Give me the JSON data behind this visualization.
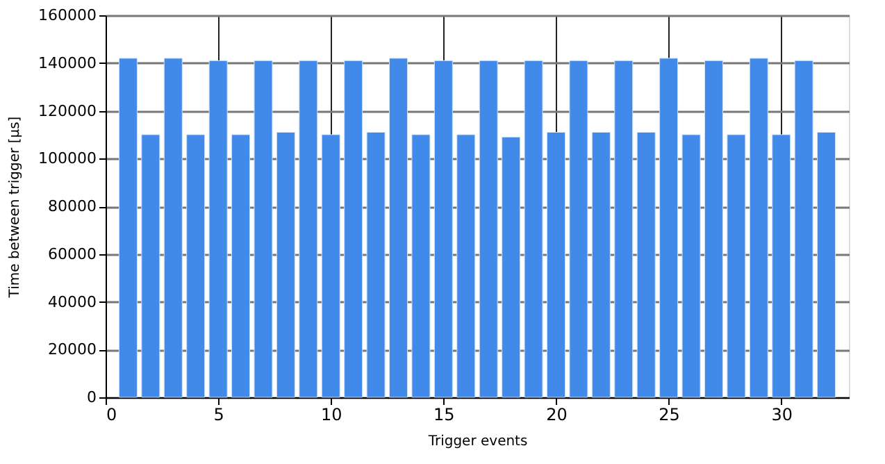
{
  "chart_data": {
    "type": "bar",
    "xlabel": "Trigger events",
    "ylabel": "Time between trigger [µs]",
    "x": [
      1,
      2,
      3,
      4,
      5,
      6,
      7,
      8,
      9,
      10,
      11,
      12,
      13,
      14,
      15,
      16,
      17,
      18,
      19,
      20,
      21,
      22,
      23,
      24,
      25,
      26,
      27,
      28,
      29,
      30,
      31,
      32
    ],
    "values": [
      142000,
      110000,
      142000,
      110000,
      141000,
      110000,
      141000,
      111000,
      141000,
      110000,
      141000,
      111000,
      142000,
      110000,
      141000,
      110000,
      141000,
      109000,
      141000,
      111000,
      141000,
      111000,
      141000,
      111000,
      142000,
      110000,
      141000,
      110000,
      142000,
      110000,
      141000,
      111000
    ],
    "color": "#418ae9",
    "xlim": [
      0,
      33
    ],
    "xticks": [
      0,
      5,
      10,
      15,
      20,
      25,
      30
    ],
    "ylim": [
      0,
      160000
    ],
    "yticks": [
      0,
      20000,
      40000,
      60000,
      80000,
      100000,
      120000,
      140000,
      160000
    ],
    "grid": true
  }
}
